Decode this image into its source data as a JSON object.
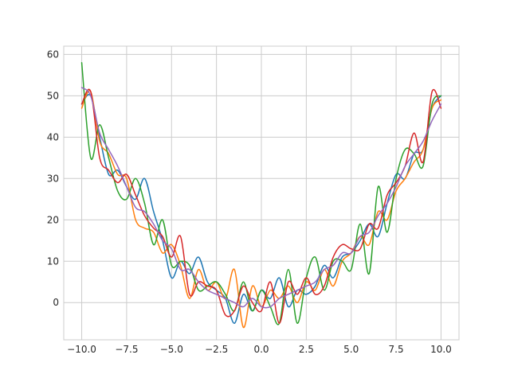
{
  "chart_data": {
    "type": "line",
    "title": "",
    "xlabel": "",
    "ylabel": "",
    "xlim": [
      -11.0,
      11.0
    ],
    "ylim": [
      -9.0,
      62.0
    ],
    "grid": true,
    "legend": "none",
    "x_ticks": [
      -10.0,
      -7.5,
      -5.0,
      -2.5,
      0.0,
      2.5,
      5.0,
      7.5,
      10.0
    ],
    "x_tick_labels": [
      "−10.0",
      "−7.5",
      "−5.0",
      "−2.5",
      "0.0",
      "2.5",
      "5.0",
      "7.5",
      "10.0"
    ],
    "y_ticks": [
      0,
      10,
      20,
      30,
      40,
      50,
      60
    ],
    "y_tick_labels": [
      "0",
      "10",
      "20",
      "30",
      "40",
      "50",
      "60"
    ],
    "x": [
      -10.0,
      -9.5,
      -9.0,
      -8.5,
      -8.0,
      -7.5,
      -7.0,
      -6.5,
      -6.0,
      -5.5,
      -5.0,
      -4.5,
      -4.0,
      -3.5,
      -3.0,
      -2.5,
      -2.0,
      -1.5,
      -1.0,
      -0.5,
      0.0,
      0.5,
      1.0,
      1.5,
      2.0,
      2.5,
      3.0,
      3.5,
      4.0,
      4.5,
      5.0,
      5.5,
      6.0,
      6.5,
      7.0,
      7.5,
      8.0,
      8.5,
      9.0,
      9.5,
      10.0
    ],
    "series": [
      {
        "color": "#1f77b4",
        "values": [
          48,
          50,
          40,
          31,
          32,
          28,
          25,
          30,
          22,
          15,
          6,
          10,
          7,
          11,
          5,
          3,
          1,
          -5,
          2,
          -2,
          3,
          1,
          6,
          -1,
          3,
          2,
          4,
          9,
          6,
          11,
          12,
          15,
          19,
          16,
          24,
          31,
          30,
          36,
          37,
          47,
          50
        ]
      },
      {
        "color": "#ff7f0e",
        "values": [
          47,
          51,
          39,
          36,
          31,
          30,
          20,
          18,
          17,
          12,
          14,
          9,
          1,
          8,
          3,
          5,
          1,
          8,
          -6,
          4,
          -1,
          3,
          1,
          4,
          0,
          5,
          3,
          8,
          4,
          10,
          12,
          16,
          14,
          22,
          20,
          27,
          30,
          34,
          37,
          47,
          49
        ]
      },
      {
        "color": "#2ca02c",
        "values": [
          58,
          35,
          43,
          35,
          27,
          25,
          30,
          24,
          14,
          20,
          9,
          10,
          9,
          3,
          4,
          5,
          2,
          -2,
          5,
          -2,
          3,
          -1,
          -5,
          8,
          -5,
          6,
          11,
          3,
          10,
          10,
          8,
          19,
          7,
          28,
          17,
          30,
          37,
          36,
          33,
          48,
          50
        ]
      },
      {
        "color": "#d62728",
        "values": [
          48,
          51,
          35,
          32,
          29,
          31,
          26,
          21,
          18,
          16,
          11,
          16,
          2,
          5,
          4,
          3,
          -3,
          -2,
          4,
          0,
          -2,
          5,
          -5,
          5,
          2,
          6,
          2,
          4,
          11,
          14,
          13,
          13,
          19,
          18,
          26,
          29,
          33,
          41,
          34,
          51,
          47
        ]
      },
      {
        "color": "#9467bd",
        "values": [
          52,
          50,
          41,
          37,
          33,
          28,
          23,
          22,
          19,
          15,
          13,
          8,
          8,
          5,
          3,
          2,
          1,
          0,
          -1,
          1,
          -1,
          -1,
          1,
          2,
          3,
          4,
          5,
          8,
          9,
          12,
          12,
          16,
          17,
          21,
          24,
          28,
          33,
          36,
          39,
          44,
          48
        ]
      }
    ]
  }
}
